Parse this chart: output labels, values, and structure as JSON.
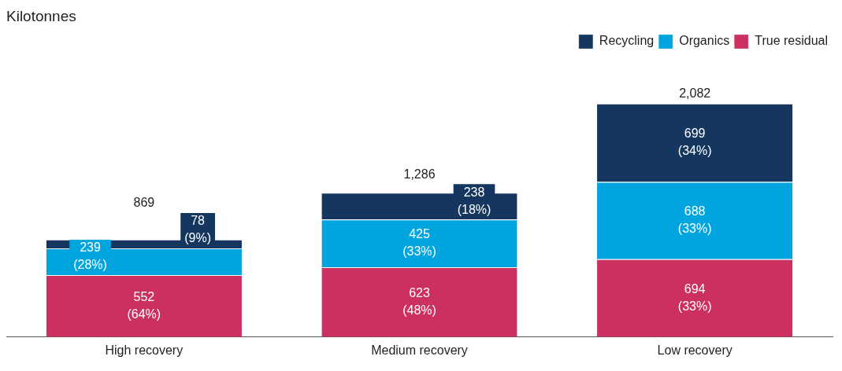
{
  "chart_data": {
    "type": "bar",
    "stacked": true,
    "annotations": [
      "Kilotonnes"
    ],
    "legend": "top right",
    "categories": [
      "High recovery",
      "Medium recovery",
      "Low recovery"
    ],
    "series": [
      {
        "name": "True residual",
        "color": "#cc3060",
        "values": [
          552,
          623,
          694
        ],
        "value_labels": [
          "552\n(64%)",
          "623\n(48%)",
          "694\n(33%)"
        ]
      },
      {
        "name": "Organics",
        "color": "#00a5df",
        "values": [
          239,
          425,
          688
        ],
        "value_labels": [
          "239\n(28%)",
          "425\n(33%)",
          "688\n(33%)"
        ]
      },
      {
        "name": "Recycling",
        "color": "#14365f",
        "values": [
          78,
          238,
          699
        ],
        "value_labels": [
          "78\n(9%)",
          "238\n(18%)",
          "699\n(34%)"
        ]
      }
    ],
    "totals": [
      "869",
      "1,286",
      "2,082"
    ]
  }
}
